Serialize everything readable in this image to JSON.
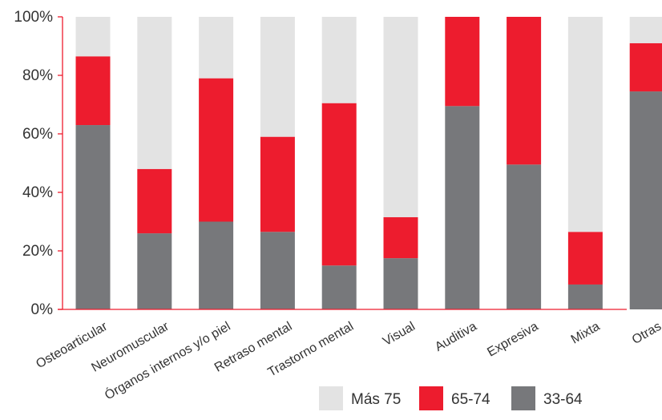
{
  "chart_data": {
    "type": "bar",
    "stacked": true,
    "percent": true,
    "title": "",
    "xlabel": "",
    "ylabel": "",
    "ylim": [
      0,
      100
    ],
    "yticks": [
      "0%",
      "20%",
      "40%",
      "60%",
      "80%",
      "100%"
    ],
    "categories": [
      "Osteoarticular",
      "Neuromuscular",
      "Órganos internos y/o piel",
      "Retraso mental",
      "Trastorno mental",
      "Visual",
      "Auditiva",
      "Expresiva",
      "Mixta",
      "Otras"
    ],
    "series": [
      {
        "name": "33-64",
        "color": "#77787b",
        "values": [
          63,
          26,
          30,
          26.5,
          15,
          17.5,
          69.5,
          49.5,
          8.5,
          74.5
        ]
      },
      {
        "name": "65-74",
        "color": "#ed1c2e",
        "values": [
          23.5,
          22,
          49,
          32.5,
          55.5,
          14,
          30.5,
          50.5,
          18,
          16.5
        ]
      },
      {
        "name": "Más 75",
        "color": "#e3e3e3",
        "values": [
          13.5,
          52,
          21,
          41,
          29.5,
          68.5,
          0,
          0,
          73.5,
          9
        ]
      }
    ],
    "legend": {
      "position": "bottom-right",
      "order": [
        "Más 75",
        "65-74",
        "33-64"
      ]
    },
    "grid": false,
    "axis_color": "#ed1c2e"
  }
}
